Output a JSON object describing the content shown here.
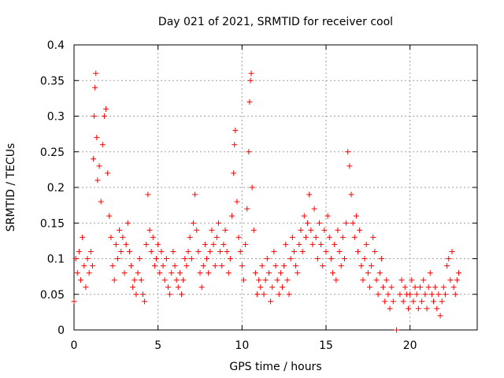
{
  "chart_data": {
    "type": "scatter",
    "title": "Day 021 of 2021, SRMTID for receiver cool",
    "xlabel": "GPS time / hours",
    "ylabel": "SRMTID / TECUs",
    "xlim": [
      0,
      24
    ],
    "ylim": [
      0,
      0.4
    ],
    "xticks": [
      0,
      5,
      10,
      15,
      20
    ],
    "xtick_labels": [
      "0",
      "5",
      "10",
      "15",
      "20"
    ],
    "yticks": [
      0,
      0.05,
      0.1,
      0.15,
      0.2,
      0.25,
      0.3,
      0.35,
      0.4
    ],
    "ytick_labels": [
      "0",
      "0.05",
      "0.1",
      "0.15",
      "0.2",
      "0.25",
      "0.3",
      "0.35",
      "0.4"
    ],
    "grid": true,
    "marker": "+",
    "color": "#ff0000",
    "series": [
      {
        "name": "SRMTID",
        "points": [
          [
            0.0,
            0.04
          ],
          [
            0.1,
            0.1
          ],
          [
            0.2,
            0.08
          ],
          [
            0.3,
            0.11
          ],
          [
            0.4,
            0.07
          ],
          [
            0.5,
            0.13
          ],
          [
            0.6,
            0.09
          ],
          [
            0.7,
            0.06
          ],
          [
            0.8,
            0.1
          ],
          [
            0.9,
            0.08
          ],
          [
            1.0,
            0.11
          ],
          [
            1.1,
            0.09
          ],
          [
            1.15,
            0.24
          ],
          [
            1.2,
            0.3
          ],
          [
            1.25,
            0.34
          ],
          [
            1.3,
            0.36
          ],
          [
            1.35,
            0.27
          ],
          [
            1.4,
            0.21
          ],
          [
            1.5,
            0.23
          ],
          [
            1.6,
            0.18
          ],
          [
            1.7,
            0.26
          ],
          [
            1.8,
            0.3
          ],
          [
            1.9,
            0.31
          ],
          [
            2.0,
            0.22
          ],
          [
            2.1,
            0.16
          ],
          [
            2.2,
            0.13
          ],
          [
            2.3,
            0.09
          ],
          [
            2.4,
            0.07
          ],
          [
            2.5,
            0.12
          ],
          [
            2.6,
            0.1
          ],
          [
            2.7,
            0.14
          ],
          [
            2.8,
            0.11
          ],
          [
            2.9,
            0.13
          ],
          [
            3.0,
            0.08
          ],
          [
            3.1,
            0.12
          ],
          [
            3.2,
            0.15
          ],
          [
            3.3,
            0.11
          ],
          [
            3.4,
            0.09
          ],
          [
            3.5,
            0.06
          ],
          [
            3.6,
            0.07
          ],
          [
            3.7,
            0.05
          ],
          [
            3.8,
            0.08
          ],
          [
            3.9,
            0.1
          ],
          [
            4.0,
            0.07
          ],
          [
            4.1,
            0.05
          ],
          [
            4.2,
            0.04
          ],
          [
            4.3,
            0.12
          ],
          [
            4.4,
            0.19
          ],
          [
            4.5,
            0.14
          ],
          [
            4.6,
            0.11
          ],
          [
            4.7,
            0.13
          ],
          [
            4.8,
            0.09
          ],
          [
            4.9,
            0.1
          ],
          [
            5.0,
            0.12
          ],
          [
            5.1,
            0.08
          ],
          [
            5.2,
            0.11
          ],
          [
            5.3,
            0.09
          ],
          [
            5.4,
            0.07
          ],
          [
            5.5,
            0.1
          ],
          [
            5.6,
            0.06
          ],
          [
            5.7,
            0.05
          ],
          [
            5.8,
            0.08
          ],
          [
            5.9,
            0.11
          ],
          [
            6.0,
            0.09
          ],
          [
            6.1,
            0.07
          ],
          [
            6.2,
            0.06
          ],
          [
            6.3,
            0.08
          ],
          [
            6.4,
            0.05
          ],
          [
            6.5,
            0.07
          ],
          [
            6.6,
            0.1
          ],
          [
            6.7,
            0.09
          ],
          [
            6.8,
            0.11
          ],
          [
            6.9,
            0.13
          ],
          [
            7.0,
            0.1
          ],
          [
            7.1,
            0.15
          ],
          [
            7.2,
            0.19
          ],
          [
            7.3,
            0.14
          ],
          [
            7.4,
            0.11
          ],
          [
            7.5,
            0.08
          ],
          [
            7.6,
            0.06
          ],
          [
            7.7,
            0.09
          ],
          [
            7.8,
            0.12
          ],
          [
            7.9,
            0.1
          ],
          [
            8.0,
            0.08
          ],
          [
            8.1,
            0.11
          ],
          [
            8.2,
            0.14
          ],
          [
            8.3,
            0.12
          ],
          [
            8.4,
            0.09
          ],
          [
            8.5,
            0.13
          ],
          [
            8.6,
            0.15
          ],
          [
            8.7,
            0.11
          ],
          [
            8.8,
            0.09
          ],
          [
            8.9,
            0.12
          ],
          [
            9.0,
            0.14
          ],
          [
            9.1,
            0.11
          ],
          [
            9.2,
            0.08
          ],
          [
            9.3,
            0.1
          ],
          [
            9.4,
            0.16
          ],
          [
            9.5,
            0.22
          ],
          [
            9.55,
            0.26
          ],
          [
            9.6,
            0.28
          ],
          [
            9.7,
            0.18
          ],
          [
            9.8,
            0.13
          ],
          [
            9.9,
            0.11
          ],
          [
            10.0,
            0.09
          ],
          [
            10.1,
            0.07
          ],
          [
            10.2,
            0.12
          ],
          [
            10.3,
            0.17
          ],
          [
            10.4,
            0.25
          ],
          [
            10.45,
            0.32
          ],
          [
            10.5,
            0.35
          ],
          [
            10.55,
            0.36
          ],
          [
            10.6,
            0.2
          ],
          [
            10.7,
            0.14
          ],
          [
            10.8,
            0.08
          ],
          [
            10.9,
            0.05
          ],
          [
            11.0,
            0.07
          ],
          [
            11.1,
            0.06
          ],
          [
            11.2,
            0.09
          ],
          [
            11.3,
            0.05
          ],
          [
            11.4,
            0.07
          ],
          [
            11.5,
            0.1
          ],
          [
            11.6,
            0.08
          ],
          [
            11.7,
            0.04
          ],
          [
            11.8,
            0.06
          ],
          [
            11.9,
            0.11
          ],
          [
            12.0,
            0.09
          ],
          [
            12.1,
            0.07
          ],
          [
            12.2,
            0.05
          ],
          [
            12.3,
            0.08
          ],
          [
            12.4,
            0.06
          ],
          [
            12.5,
            0.09
          ],
          [
            12.6,
            0.12
          ],
          [
            12.7,
            0.07
          ],
          [
            12.8,
            0.05
          ],
          [
            12.9,
            0.1
          ],
          [
            13.0,
            0.13
          ],
          [
            13.1,
            0.11
          ],
          [
            13.2,
            0.09
          ],
          [
            13.3,
            0.08
          ],
          [
            13.4,
            0.12
          ],
          [
            13.5,
            0.14
          ],
          [
            13.6,
            0.11
          ],
          [
            13.7,
            0.16
          ],
          [
            13.8,
            0.13
          ],
          [
            13.9,
            0.15
          ],
          [
            14.0,
            0.19
          ],
          [
            14.1,
            0.14
          ],
          [
            14.2,
            0.12
          ],
          [
            14.3,
            0.17
          ],
          [
            14.4,
            0.13
          ],
          [
            14.5,
            0.1
          ],
          [
            14.6,
            0.15
          ],
          [
            14.7,
            0.12
          ],
          [
            14.8,
            0.09
          ],
          [
            14.9,
            0.14
          ],
          [
            15.0,
            0.11
          ],
          [
            15.1,
            0.16
          ],
          [
            15.2,
            0.13
          ],
          [
            15.3,
            0.1
          ],
          [
            15.4,
            0.08
          ],
          [
            15.5,
            0.12
          ],
          [
            15.6,
            0.07
          ],
          [
            15.7,
            0.14
          ],
          [
            15.8,
            0.11
          ],
          [
            15.9,
            0.09
          ],
          [
            16.0,
            0.13
          ],
          [
            16.1,
            0.1
          ],
          [
            16.2,
            0.15
          ],
          [
            16.3,
            0.25
          ],
          [
            16.4,
            0.23
          ],
          [
            16.5,
            0.19
          ],
          [
            16.6,
            0.15
          ],
          [
            16.7,
            0.13
          ],
          [
            16.8,
            0.16
          ],
          [
            16.9,
            0.11
          ],
          [
            17.0,
            0.14
          ],
          [
            17.1,
            0.09
          ],
          [
            17.2,
            0.07
          ],
          [
            17.3,
            0.1
          ],
          [
            17.4,
            0.12
          ],
          [
            17.5,
            0.08
          ],
          [
            17.6,
            0.06
          ],
          [
            17.7,
            0.09
          ],
          [
            17.8,
            0.13
          ],
          [
            17.9,
            0.11
          ],
          [
            18.0,
            0.07
          ],
          [
            18.1,
            0.05
          ],
          [
            18.2,
            0.08
          ],
          [
            18.3,
            0.1
          ],
          [
            18.4,
            0.06
          ],
          [
            18.5,
            0.04
          ],
          [
            18.6,
            0.07
          ],
          [
            18.7,
            0.05
          ],
          [
            18.8,
            0.03
          ],
          [
            18.9,
            0.06
          ],
          [
            19.0,
            0.04
          ],
          [
            19.2,
            0.0
          ],
          [
            19.4,
            0.05
          ],
          [
            19.5,
            0.07
          ],
          [
            19.6,
            0.04
          ],
          [
            19.7,
            0.06
          ],
          [
            19.8,
            0.05
          ],
          [
            19.9,
            0.03
          ],
          [
            20.0,
            0.05
          ],
          [
            20.1,
            0.07
          ],
          [
            20.2,
            0.04
          ],
          [
            20.3,
            0.06
          ],
          [
            20.4,
            0.05
          ],
          [
            20.5,
            0.03
          ],
          [
            20.6,
            0.06
          ],
          [
            20.7,
            0.04
          ],
          [
            20.8,
            0.07
          ],
          [
            20.9,
            0.05
          ],
          [
            21.0,
            0.03
          ],
          [
            21.1,
            0.06
          ],
          [
            21.2,
            0.08
          ],
          [
            21.3,
            0.05
          ],
          [
            21.4,
            0.04
          ],
          [
            21.5,
            0.06
          ],
          [
            21.6,
            0.03
          ],
          [
            21.7,
            0.05
          ],
          [
            21.8,
            0.02
          ],
          [
            21.9,
            0.04
          ],
          [
            22.0,
            0.06
          ],
          [
            22.1,
            0.05
          ],
          [
            22.2,
            0.09
          ],
          [
            22.3,
            0.1
          ],
          [
            22.4,
            0.07
          ],
          [
            22.5,
            0.11
          ],
          [
            22.6,
            0.06
          ],
          [
            22.7,
            0.05
          ],
          [
            22.8,
            0.07
          ],
          [
            22.9,
            0.08
          ]
        ]
      }
    ]
  }
}
